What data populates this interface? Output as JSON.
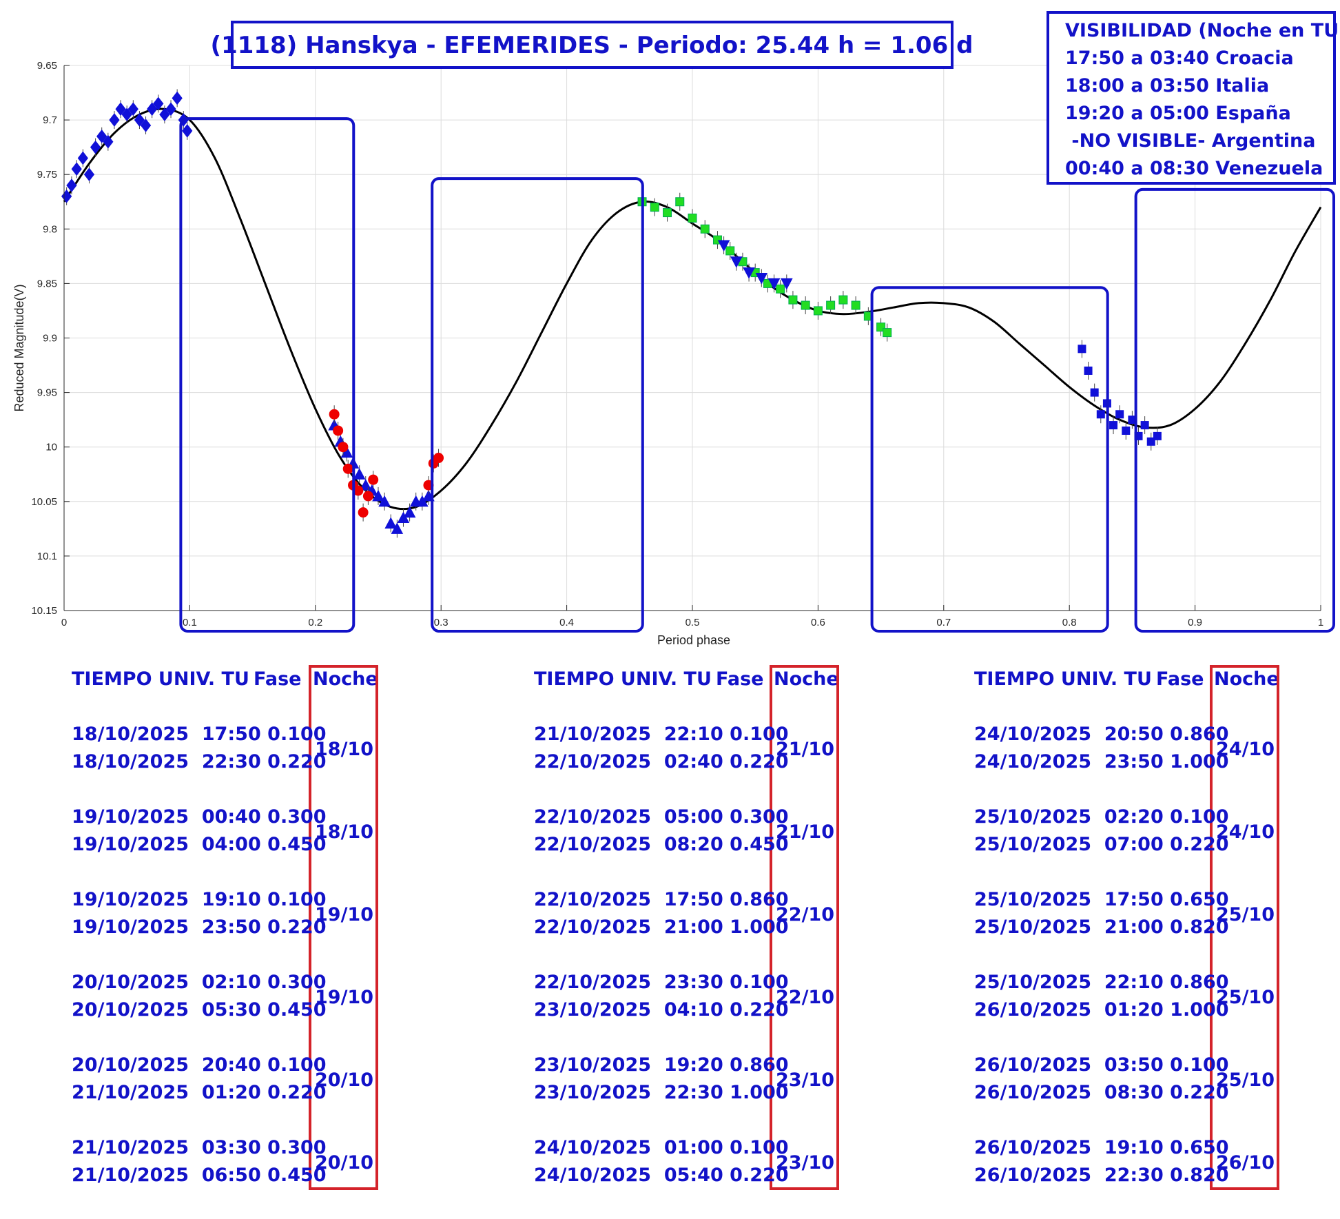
{
  "title": "(1118) Hanskya - EFEMERIDES - Periodo: 25.44 h = 1.06 d",
  "visibility": {
    "lines": [
      "VISIBILIDAD (Noche en TU)",
      "17:50 a 03:40 Croacia",
      "18:00 a 03:50 Italia",
      "19:20 a 05:00 España",
      " -NO VISIBLE- Argentina",
      "00:40 a 08:30 Venezuela"
    ]
  },
  "colors": {
    "accent": "#1212c8",
    "noche_box": "#d4232a",
    "fit_curve": "#000000",
    "series_blue": "#1010d8",
    "series_green": "#22dd22",
    "series_red": "#ee0000"
  },
  "chart_data": {
    "type": "scatter",
    "xlabel": "Period phase",
    "ylabel": "Reduced Magnitude(V)",
    "xlim": [
      0,
      1
    ],
    "ylim": [
      10.15,
      9.65
    ],
    "y_inverted": true,
    "grid": true,
    "x_ticks": [
      0,
      0.1,
      0.2,
      0.3,
      0.4,
      0.5,
      0.6,
      0.7,
      0.8,
      0.9,
      1
    ],
    "y_ticks": [
      9.65,
      9.7,
      9.75,
      9.8,
      9.85,
      9.9,
      9.95,
      10,
      10.05,
      10.1,
      10.15
    ],
    "fit_curve": {
      "x": [
        0,
        0.02,
        0.04,
        0.06,
        0.08,
        0.1,
        0.12,
        0.14,
        0.16,
        0.18,
        0.2,
        0.22,
        0.24,
        0.26,
        0.28,
        0.3,
        0.32,
        0.34,
        0.36,
        0.38,
        0.4,
        0.42,
        0.44,
        0.46,
        0.48,
        0.5,
        0.52,
        0.54,
        0.56,
        0.58,
        0.6,
        0.62,
        0.64,
        0.66,
        0.68,
        0.7,
        0.72,
        0.74,
        0.76,
        0.78,
        0.8,
        0.82,
        0.84,
        0.86,
        0.88,
        0.9,
        0.92,
        0.94,
        0.96,
        0.98,
        1.0
      ],
      "y": [
        9.775,
        9.74,
        9.712,
        9.695,
        9.69,
        9.7,
        9.735,
        9.79,
        9.85,
        9.91,
        9.965,
        10.01,
        10.04,
        10.055,
        10.055,
        10.04,
        10.015,
        9.98,
        9.94,
        9.895,
        9.85,
        9.81,
        9.785,
        9.775,
        9.78,
        9.795,
        9.81,
        9.83,
        9.85,
        9.865,
        9.875,
        9.878,
        9.876,
        9.872,
        9.868,
        9.868,
        9.872,
        9.885,
        9.905,
        9.925,
        9.945,
        9.962,
        9.975,
        9.982,
        9.98,
        9.965,
        9.94,
        9.905,
        9.865,
        9.82,
        9.78
      ]
    },
    "series": [
      {
        "marker": "diamond",
        "color": "#1010d8",
        "x": [
          0.002,
          0.006,
          0.01,
          0.015,
          0.02,
          0.025,
          0.03,
          0.035,
          0.04,
          0.045,
          0.05,
          0.055,
          0.06,
          0.065,
          0.07,
          0.075,
          0.08,
          0.085,
          0.09,
          0.095,
          0.098
        ],
        "y": [
          9.77,
          9.76,
          9.745,
          9.735,
          9.75,
          9.725,
          9.715,
          9.72,
          9.7,
          9.69,
          9.695,
          9.69,
          9.7,
          9.705,
          9.69,
          9.685,
          9.695,
          9.69,
          9.68,
          9.7,
          9.71
        ]
      },
      {
        "marker": "triangle-up",
        "color": "#1010d8",
        "x": [
          0.215,
          0.22,
          0.225,
          0.23,
          0.235,
          0.24,
          0.245,
          0.25,
          0.255,
          0.26,
          0.265,
          0.27,
          0.275,
          0.28,
          0.285,
          0.29
        ],
        "y": [
          9.98,
          9.995,
          10.005,
          10.015,
          10.025,
          10.035,
          10.04,
          10.045,
          10.05,
          10.07,
          10.075,
          10.065,
          10.06,
          10.05,
          10.05,
          10.045
        ]
      },
      {
        "marker": "circle",
        "color": "#ee0000",
        "x": [
          0.215,
          0.218,
          0.222,
          0.226,
          0.23,
          0.234,
          0.238,
          0.242,
          0.246,
          0.29,
          0.294,
          0.298
        ],
        "y": [
          9.97,
          9.985,
          10.0,
          10.02,
          10.035,
          10.04,
          10.06,
          10.045,
          10.03,
          10.035,
          10.015,
          10.01
        ]
      },
      {
        "marker": "square",
        "color": "#22dd22",
        "x": [
          0.46,
          0.47,
          0.48,
          0.49,
          0.5,
          0.51,
          0.52,
          0.53,
          0.54,
          0.55,
          0.56,
          0.57,
          0.58,
          0.59,
          0.6,
          0.61,
          0.62,
          0.63,
          0.64,
          0.65,
          0.655
        ],
        "y": [
          9.775,
          9.78,
          9.785,
          9.775,
          9.79,
          9.8,
          9.81,
          9.82,
          9.83,
          9.84,
          9.85,
          9.855,
          9.865,
          9.87,
          9.875,
          9.87,
          9.865,
          9.87,
          9.88,
          9.89,
          9.895
        ]
      },
      {
        "marker": "triangle-down",
        "color": "#1010d8",
        "x": [
          0.525,
          0.535,
          0.545,
          0.555,
          0.565,
          0.575
        ],
        "y": [
          9.815,
          9.83,
          9.84,
          9.845,
          9.85,
          9.85
        ]
      },
      {
        "marker": "square",
        "color": "#1010d8",
        "x": [
          0.81,
          0.815,
          0.82,
          0.825,
          0.83,
          0.835,
          0.84,
          0.845,
          0.85,
          0.855,
          0.86,
          0.865,
          0.87
        ],
        "y": [
          9.91,
          9.93,
          9.95,
          9.97,
          9.96,
          9.98,
          9.97,
          9.985,
          9.975,
          9.99,
          9.98,
          9.995,
          9.99
        ]
      }
    ]
  },
  "phase_boxes": [
    {
      "x0": 0.1,
      "x1": 0.22,
      "y0": 9.7,
      "y1": 10.15
    },
    {
      "x0": 0.3,
      "x1": 0.45,
      "y0": 9.755,
      "y1": 10.15
    },
    {
      "x0": 0.65,
      "x1": 0.82,
      "y0": 9.855,
      "y1": 10.15
    },
    {
      "x0": 0.86,
      "x1": 1.0,
      "y0": 9.765,
      "y1": 10.15
    }
  ],
  "tables": [
    {
      "header": {
        "time": "TIEMPO UNIV. TU",
        "phase": "Fase",
        "night": "Noche"
      },
      "rows": [
        {
          "line1": "18/10/2025  17:50 0.100",
          "line2": "18/10/2025  22:30 0.220",
          "night": "18/10"
        },
        {
          "line1": "19/10/2025  00:40 0.300",
          "line2": "19/10/2025  04:00 0.450",
          "night": "18/10"
        },
        {
          "line1": "19/10/2025  19:10 0.100",
          "line2": "19/10/2025  23:50 0.220",
          "night": "19/10"
        },
        {
          "line1": "20/10/2025  02:10 0.300",
          "line2": "20/10/2025  05:30 0.450",
          "night": "19/10"
        },
        {
          "line1": "20/10/2025  20:40 0.100",
          "line2": "21/10/2025  01:20 0.220",
          "night": "20/10"
        },
        {
          "line1": "21/10/2025  03:30 0.300",
          "line2": "21/10/2025  06:50 0.450",
          "night": "20/10"
        }
      ]
    },
    {
      "header": {
        "time": "TIEMPO UNIV. TU",
        "phase": "Fase",
        "night": "Noche"
      },
      "rows": [
        {
          "line1": "21/10/2025  22:10 0.100",
          "line2": "22/10/2025  02:40 0.220",
          "night": "21/10"
        },
        {
          "line1": "22/10/2025  05:00 0.300",
          "line2": "22/10/2025  08:20 0.450",
          "night": "21/10"
        },
        {
          "line1": "22/10/2025  17:50 0.860",
          "line2": "22/10/2025  21:00 1.000",
          "night": "22/10"
        },
        {
          "line1": "22/10/2025  23:30 0.100",
          "line2": "23/10/2025  04:10 0.220",
          "night": "22/10"
        },
        {
          "line1": "23/10/2025  19:20 0.860",
          "line2": "23/10/2025  22:30 1.000",
          "night": "23/10"
        },
        {
          "line1": "24/10/2025  01:00 0.100",
          "line2": "24/10/2025  05:40 0.220",
          "night": "23/10"
        }
      ]
    },
    {
      "header": {
        "time": "TIEMPO UNIV. TU",
        "phase": "Fase",
        "night": "Noche"
      },
      "rows": [
        {
          "line1": "24/10/2025  20:50 0.860",
          "line2": "24/10/2025  23:50 1.000",
          "night": "24/10"
        },
        {
          "line1": "25/10/2025  02:20 0.100",
          "line2": "25/10/2025  07:00 0.220",
          "night": "24/10"
        },
        {
          "line1": "25/10/2025  17:50 0.650",
          "line2": "25/10/2025  21:00 0.820",
          "night": "25/10"
        },
        {
          "line1": "25/10/2025  22:10 0.860",
          "line2": "26/10/2025  01:20 1.000",
          "night": "25/10"
        },
        {
          "line1": "26/10/2025  03:50 0.100",
          "line2": "26/10/2025  08:30 0.220",
          "night": "25/10"
        },
        {
          "line1": "26/10/2025  19:10 0.650",
          "line2": "26/10/2025  22:30 0.820",
          "night": "26/10"
        }
      ]
    }
  ]
}
